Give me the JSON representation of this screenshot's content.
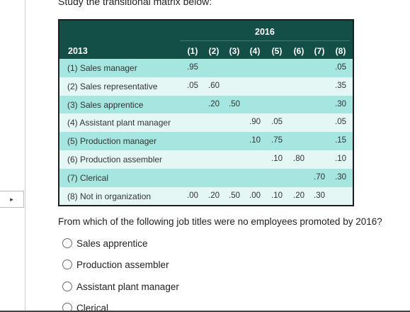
{
  "prompt": "Study the transitional matrix below:",
  "matrix": {
    "year_to": "2016",
    "year_from": "2013",
    "columns": [
      "(1)",
      "(2)",
      "(3)",
      "(4)",
      "(5)",
      "(6)",
      "(7)",
      "(8)"
    ],
    "rows": [
      {
        "label": "(1) Sales manager",
        "cells": [
          ".95",
          "",
          "",
          "",
          "",
          "",
          "",
          ".05"
        ]
      },
      {
        "label": "(2) Sales representative",
        "cells": [
          ".05",
          ".60",
          "",
          "",
          "",
          "",
          "",
          ".35"
        ]
      },
      {
        "label": "(3) Sales apprentice",
        "cells": [
          "",
          ".20",
          ".50",
          "",
          "",
          "",
          "",
          ".30"
        ]
      },
      {
        "label": "(4) Assistant plant manager",
        "cells": [
          "",
          "",
          "",
          ".90",
          ".05",
          "",
          "",
          ".05"
        ]
      },
      {
        "label": "(5) Production manager",
        "cells": [
          "",
          "",
          "",
          ".10",
          ".75",
          "",
          "",
          ".15"
        ]
      },
      {
        "label": "(6) Production assembler",
        "cells": [
          "",
          "",
          "",
          "",
          ".10",
          ".80",
          "",
          ".10"
        ]
      },
      {
        "label": "(7) Clerical",
        "cells": [
          "",
          "",
          "",
          "",
          "",
          "",
          ".70",
          ".30"
        ]
      },
      {
        "label": "(8) Not in organization",
        "cells": [
          ".00",
          ".20",
          ".50",
          ".00",
          ".10",
          ".20",
          ".30",
          ""
        ]
      }
    ]
  },
  "question": "From which of the following job titles were no employees promoted by 2016?",
  "options": [
    {
      "label": "Sales apprentice"
    },
    {
      "label": "Production assembler"
    },
    {
      "label": "Assistant plant manager"
    },
    {
      "label": "Clerical"
    }
  ],
  "expand_icon": "▸",
  "colors": {
    "header": "#144f47",
    "shade": "#a5e6e0",
    "light": "#e4f7f5"
  }
}
